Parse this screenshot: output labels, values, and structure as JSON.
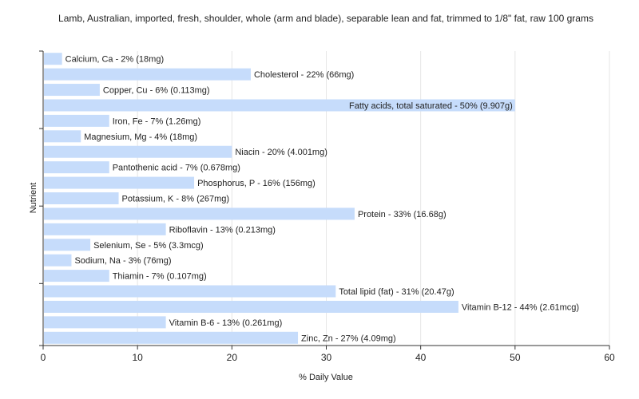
{
  "chart_data": {
    "type": "bar",
    "orientation": "horizontal",
    "title": "Lamb, Australian, imported, fresh, shoulder, whole (arm and blade), separable lean and fat, trimmed to 1/8\" fat, raw 100 grams",
    "xlabel": "% Daily Value",
    "ylabel": "Nutrient",
    "xlim": [
      0,
      60
    ],
    "xticks": [
      0,
      10,
      20,
      30,
      40,
      50,
      60
    ],
    "grid": true,
    "bar_color": "#c6dcfb",
    "categories": [
      "Calcium, Ca",
      "Cholesterol",
      "Copper, Cu",
      "Fatty acids, total saturated",
      "Iron, Fe",
      "Magnesium, Mg",
      "Niacin",
      "Pantothenic acid",
      "Phosphorus, P",
      "Potassium, K",
      "Protein",
      "Riboflavin",
      "Selenium, Se",
      "Sodium, Na",
      "Thiamin",
      "Total lipid (fat)",
      "Vitamin B-12",
      "Vitamin B-6",
      "Zinc, Zn"
    ],
    "values": [
      2,
      22,
      6,
      50,
      7,
      4,
      20,
      7,
      16,
      8,
      33,
      13,
      5,
      3,
      7,
      31,
      44,
      13,
      27
    ],
    "labels": [
      "Calcium, Ca - 2% (18mg)",
      "Cholesterol - 22% (66mg)",
      "Copper, Cu - 6% (0.113mg)",
      "Fatty acids, total saturated - 50% (9.907g)",
      "Iron, Fe - 7% (1.26mg)",
      "Magnesium, Mg - 4% (18mg)",
      "Niacin - 20% (4.001mg)",
      "Pantothenic acid - 7% (0.678mg)",
      "Phosphorus, P - 16% (156mg)",
      "Potassium, K - 8% (267mg)",
      "Protein - 33% (16.68g)",
      "Riboflavin - 13% (0.213mg)",
      "Selenium, Se - 5% (3.3mcg)",
      "Sodium, Na - 3% (76mg)",
      "Thiamin - 7% (0.107mg)",
      "Total lipid (fat) - 31% (20.47g)",
      "Vitamin B-12 - 44% (2.61mcg)",
      "Vitamin B-6 - 13% (0.261mg)",
      "Zinc, Zn - 27% (4.09mg)"
    ]
  }
}
